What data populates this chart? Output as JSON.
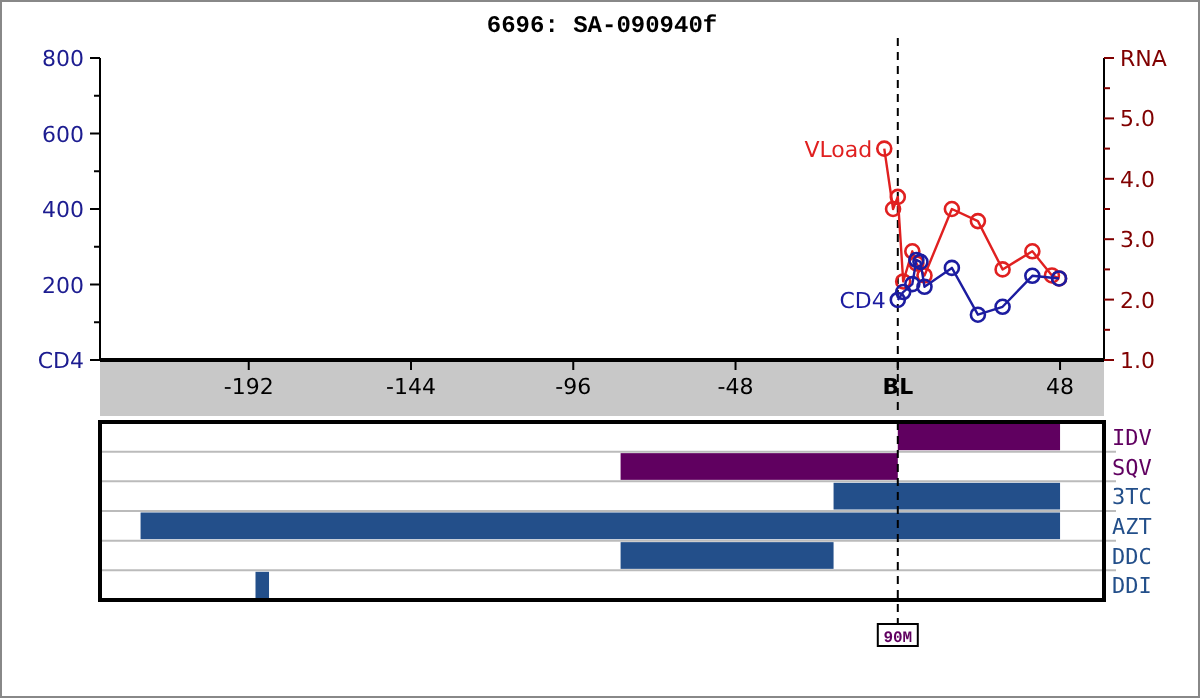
{
  "chart_data": [
    {
      "type": "line",
      "title": "6696: SA-090940f",
      "xlim": [
        -236,
        61
      ],
      "xticks": [
        -192,
        -144,
        -96,
        -48,
        {
          "value": 0,
          "label": "BL"
        },
        48
      ],
      "ylim": [
        0,
        800
      ],
      "yticks": [
        {
          "value": 0,
          "label": "CD4"
        },
        {
          "value": 100,
          "label": null
        },
        200,
        {
          "value": 300,
          "label": null
        },
        400,
        {
          "value": 500,
          "label": null
        },
        600,
        {
          "value": 700,
          "label": null
        },
        800
      ],
      "y2lim": [
        1,
        6
      ],
      "y2ticks": [
        {
          "value": 1,
          "label": "1.0"
        },
        {
          "value": 1.5,
          "label": null
        },
        {
          "value": 2,
          "label": "2.0"
        },
        {
          "value": 2.5,
          "label": null
        },
        {
          "value": 3,
          "label": "3.0"
        },
        {
          "value": 3.5,
          "label": null
        },
        {
          "value": 4,
          "label": "4.0"
        },
        {
          "value": 4.5,
          "label": null
        },
        {
          "value": 5,
          "label": "5.0"
        },
        {
          "value": 5.5,
          "label": null
        },
        {
          "value": 6,
          "label": "RNA"
        }
      ],
      "marker": "circle",
      "grid": false,
      "ref_lines": [
        {
          "axis": "x",
          "value": 0,
          "line_style": "dashed",
          "color": "#000000"
        }
      ],
      "series": [
        {
          "name": "CD4",
          "color": "#1c1ca0",
          "x": [
            0,
            1.6,
            4.3,
            5.5,
            6.7,
            7.9,
            16,
            23.7,
            31,
            39.8,
            47.7
          ],
          "values": [
            159,
            180,
            201,
            265,
            260,
            194,
            244,
            120,
            141,
            223,
            216
          ]
        },
        {
          "name": "VLoad",
          "color": "#e02020",
          "axis": "y2",
          "x": [
            -4,
            -1.4,
            0,
            1.6,
            4.3,
            5.5,
            7.9,
            16,
            23.7,
            31,
            39.8,
            45.6,
            47.7
          ],
          "values": [
            4.5,
            3.5,
            3.7,
            2.3,
            2.8,
            2.6,
            2.4,
            3.5,
            3.3,
            2.5,
            2.8,
            2.4,
            2.35
          ]
        }
      ]
    },
    {
      "type": "bar",
      "orientation": "horizontal",
      "categories": [
        "IDV",
        "SQV",
        "3TC",
        "AZT",
        "DDC",
        "DDI"
      ],
      "base": [
        0,
        -82,
        -19,
        -224,
        -82,
        -190
      ],
      "values": [
        48,
        82,
        67,
        272,
        63,
        4
      ],
      "colors": [
        "#600060",
        "#600060",
        "#234f8a",
        "#234f8a",
        "#234f8a",
        "#234f8a"
      ],
      "xlim": [
        -236,
        61
      ],
      "tick_labels": "y",
      "grid": "y",
      "ref_lines": [
        {
          "axis": "x",
          "value": 0,
          "label": "90M",
          "line_style": "dashed",
          "color": "#000000"
        }
      ]
    }
  ]
}
